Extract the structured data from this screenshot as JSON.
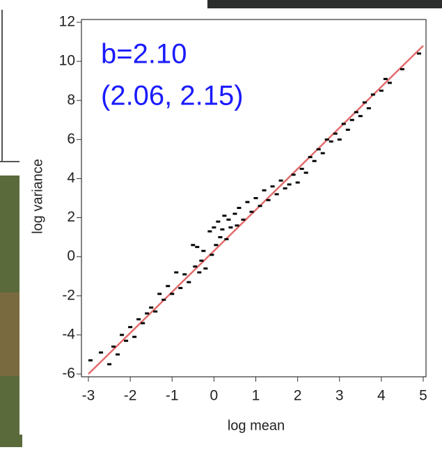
{
  "chart_data": {
    "type": "scatter",
    "x_label": "log mean",
    "y_label": "log variance",
    "annotations": [
      "b=2.10",
      "(2.06, 2.15)"
    ],
    "annotation_color": "#1a1aff",
    "marker_color": "#000000",
    "xlim": [
      -3,
      5
    ],
    "ylim": [
      -6,
      12
    ],
    "xticks": [
      -3,
      -2,
      -1,
      0,
      1,
      2,
      3,
      4,
      5
    ],
    "yticks": [
      -6,
      -4,
      -2,
      0,
      2,
      4,
      6,
      8,
      10,
      12
    ],
    "x": [
      -2.95,
      -2.7,
      -2.5,
      -2.4,
      -2.3,
      -2.2,
      -2.1,
      -2.0,
      -1.9,
      -1.8,
      -1.7,
      -1.6,
      -1.5,
      -1.4,
      -1.3,
      -1.2,
      -1.1,
      -1.0,
      -0.9,
      -0.8,
      -0.7,
      -0.6,
      -0.5,
      -0.45,
      -0.4,
      -0.35,
      -0.3,
      -0.25,
      -0.2,
      -0.1,
      -0.05,
      0,
      0.05,
      0.1,
      0.15,
      0.2,
      0.25,
      0.3,
      0.35,
      0.4,
      0.5,
      0.55,
      0.6,
      0.7,
      0.8,
      0.9,
      1.0,
      1.1,
      1.2,
      1.3,
      1.4,
      1.5,
      1.6,
      1.7,
      1.8,
      1.9,
      2.0,
      2.1,
      2.2,
      2.3,
      2.4,
      2.5,
      2.6,
      2.7,
      2.8,
      2.9,
      3.0,
      3.1,
      3.2,
      3.3,
      3.4,
      3.5,
      3.6,
      3.7,
      3.8,
      4.0,
      4.1,
      4.2,
      4.5,
      4.9
    ],
    "values": [
      -5.3,
      -4.9,
      -5.5,
      -4.6,
      -5.0,
      -4.0,
      -4.3,
      -3.6,
      -4.1,
      -3.2,
      -3.4,
      -2.9,
      -2.6,
      -2.8,
      -1.9,
      -2.2,
      -1.5,
      -1.9,
      -0.8,
      -1.6,
      -0.9,
      -1.3,
      0.6,
      -0.5,
      0.5,
      -0.8,
      -0.2,
      0.3,
      -0.6,
      1.3,
      0.1,
      1.5,
      0.6,
      1.8,
      1.0,
      1.4,
      2.1,
      0.9,
      1.9,
      1.5,
      2.2,
      1.6,
      2.5,
      1.9,
      2.8,
      2.3,
      3.0,
      2.6,
      3.4,
      2.9,
      3.6,
      3.2,
      3.9,
      3.5,
      3.7,
      4.2,
      3.8,
      4.5,
      4.3,
      5.1,
      4.9,
      5.5,
      5.3,
      6.0,
      5.9,
      6.3,
      6.0,
      6.8,
      6.5,
      7.0,
      7.4,
      7.2,
      7.9,
      7.6,
      8.3,
      8.5,
      9.1,
      8.9,
      9.6,
      10.4
    ],
    "fit_line": {
      "color": "#e36b6b",
      "x": [
        -3,
        5
      ],
      "values": [
        -6,
        10.8
      ]
    }
  }
}
